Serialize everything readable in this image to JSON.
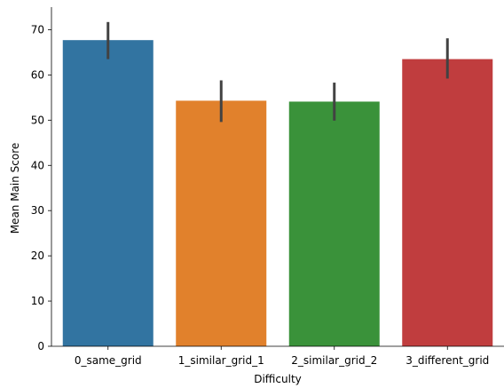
{
  "chart_data": {
    "type": "bar",
    "title": "",
    "xlabel": "Difficulty",
    "ylabel": "Mean Main Score",
    "categories": [
      "0_same_grid",
      "1_similar_grid_1",
      "2_similar_grid_2",
      "3_different_grid"
    ],
    "values": [
      67.7,
      54.3,
      54.1,
      63.5
    ],
    "error_bars": [
      {
        "low": 63.5,
        "high": 71.7
      },
      {
        "low": 49.6,
        "high": 58.8
      },
      {
        "low": 49.9,
        "high": 58.3
      },
      {
        "low": 59.2,
        "high": 68.1
      }
    ],
    "colors": [
      "#3274a1",
      "#e1812c",
      "#3a923a",
      "#c03d3e"
    ],
    "error_color": "#424242",
    "ylim": [
      0,
      75
    ],
    "yticks": [
      0,
      10,
      20,
      30,
      40,
      50,
      60,
      70
    ],
    "grid": false,
    "spines": "left-bottom"
  }
}
